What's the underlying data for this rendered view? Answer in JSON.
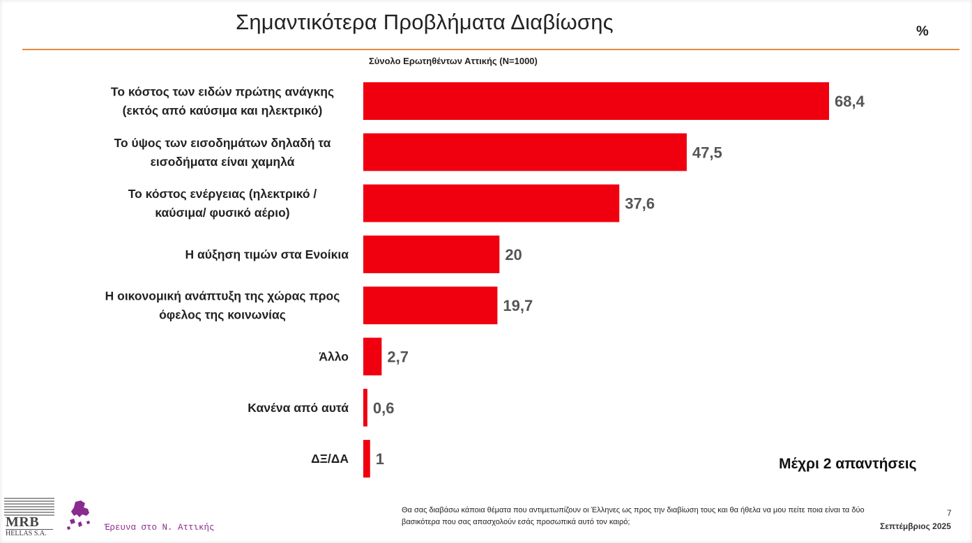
{
  "title": "Σημαντικότερα Προβλήματα  Διαβίωσης",
  "unit_label": "%",
  "subtitle": "Σύνολο Ερωτηθέντων Αττικής (N=1000)",
  "note": "Μέχρι 2 απαντήσεις",
  "footer": {
    "question": "Θα σας διαβάσω κάποια θέματα που αντιμετωπίζουν οι Έλληνες ως προς την διαβίωση τους και θα ήθελα να μου πείτε ποια είναι τα δύο βασικότερα που σας απασχολούν εσάς προσωπικά αυτό τον καιρό;",
    "page_number": "7",
    "date": "Σεπτέμβριος 2025",
    "logo_text": "MRB",
    "logo_subtext": "HELLAS S.A.",
    "region_text": "Έρευνα στο Ν. Αττικής"
  },
  "colors": {
    "bar": "#f0000f",
    "accent_rule": "#e7893f",
    "value_text": "#555555",
    "region_logo": "#8a2b8f"
  },
  "chart_data": {
    "type": "bar",
    "orientation": "horizontal",
    "categories": [
      [
        "Το κόστος των ειδών πρώτης ανάγκης",
        "(εκτός από καύσιμα και ηλεκτρικό)"
      ],
      [
        "Το ύψος των εισοδημάτων δηλαδή τα",
        "εισοδήματα είναι χαμηλά"
      ],
      [
        "Το κόστος ενέργειας (ηλεκτρικό /",
        "καύσιμα/ φυσικό αέριο)"
      ],
      [
        "Η αύξηση τιμών στα Ενοίκια"
      ],
      [
        "Η οικονομική ανάπτυξη της χώρας προς",
        "όφελος της κοινωνίας"
      ],
      [
        "Άλλο"
      ],
      [
        "Κανένα από αυτά"
      ],
      [
        "ΔΞ/ΔΑ"
      ]
    ],
    "values": [
      68.4,
      47.5,
      37.6,
      20,
      19.7,
      2.7,
      0.6,
      1
    ],
    "value_labels": [
      "68,4",
      "47,5",
      "37,6",
      "20",
      "19,7",
      "2,7",
      "0,6",
      "1"
    ],
    "xlim": [
      0,
      70
    ],
    "grid": false,
    "legend": "none"
  }
}
